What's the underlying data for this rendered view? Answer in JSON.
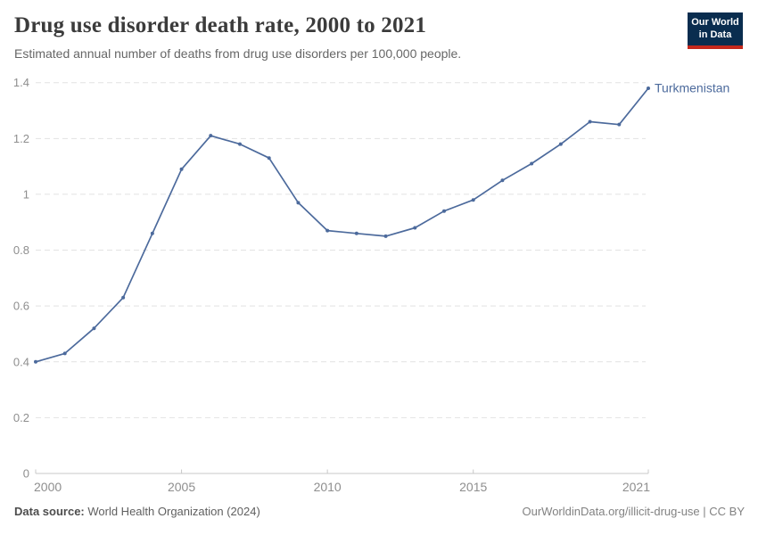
{
  "header": {
    "title": "Drug use disorder death rate, 2000 to 2021",
    "subtitle": "Estimated annual number of deaths from drug use disorders per 100,000 people."
  },
  "logo": {
    "line1": "Our World",
    "line2": "in Data",
    "background": "#0a2d4f",
    "accent": "#c5281c"
  },
  "footer": {
    "source_label": "Data source:",
    "source_text": " World Health Organization (2024)",
    "right_text": "OurWorldinData.org/illicit-drug-use | CC BY"
  },
  "chart_data": {
    "type": "line",
    "title": "Drug use disorder death rate, 2000 to 2021",
    "subtitle": "Estimated annual number of deaths from drug use disorders per 100,000 people.",
    "xlabel": "",
    "ylabel": "",
    "x": [
      2000,
      2001,
      2002,
      2003,
      2004,
      2005,
      2006,
      2007,
      2008,
      2009,
      2010,
      2011,
      2012,
      2013,
      2014,
      2015,
      2016,
      2017,
      2018,
      2019,
      2020,
      2021
    ],
    "series": [
      {
        "name": "Turkmenistan",
        "values": [
          0.4,
          0.43,
          0.52,
          0.63,
          0.86,
          1.09,
          1.21,
          1.18,
          1.13,
          0.97,
          0.87,
          0.86,
          0.85,
          0.88,
          0.94,
          0.98,
          1.05,
          1.11,
          1.18,
          1.26,
          1.25,
          1.38
        ]
      }
    ],
    "xlim": [
      2000,
      2021
    ],
    "ylim": [
      0,
      1.4
    ],
    "yticks": [
      0,
      0.2,
      0.4,
      0.6,
      0.8,
      1,
      1.2,
      1.4
    ],
    "xticks": [
      2000,
      2005,
      2010,
      2015,
      2021
    ],
    "grid": "horizontal-dashed",
    "legend": "end-of-line-label",
    "colors": {
      "line": "#4c6a9c",
      "grid": "#e2e2e2",
      "axis": "#c8c8c8",
      "tick_label": "#8e8e8e"
    }
  }
}
